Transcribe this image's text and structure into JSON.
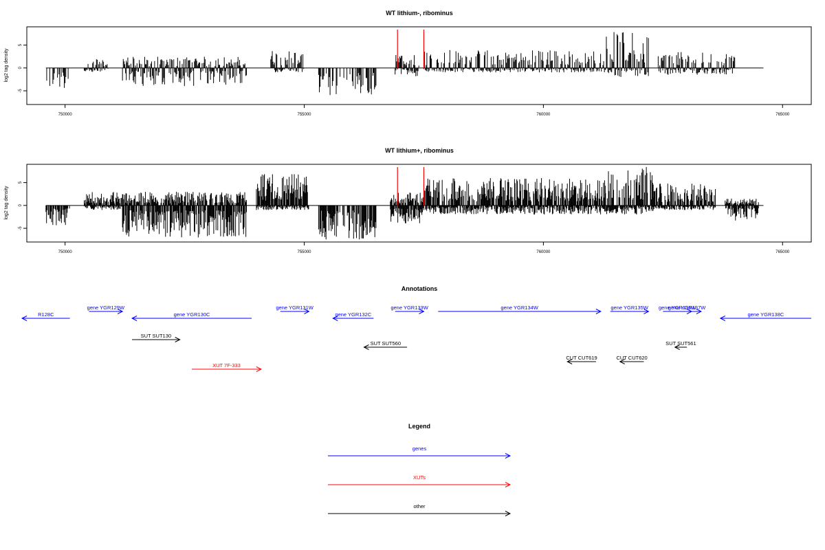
{
  "colors": {
    "gene": "#0000ff",
    "xut": "#ff0000",
    "other": "#000000",
    "bars": "#000000",
    "marker": "#ff0000"
  },
  "chart_data": [
    {
      "type": "bar",
      "title": "WT lithium-, ribominus",
      "ylabel": "log2 tag density",
      "xlim": [
        749200,
        765600
      ],
      "ylim": [
        -8,
        9
      ],
      "x_ticks": [
        750000,
        755000,
        760000,
        765000
      ],
      "y_ticks": [
        5,
        0,
        -5
      ],
      "markers_x": [
        756950,
        757500
      ],
      "segments": [
        {
          "from": 749600,
          "to": 750100,
          "min": -4.5,
          "max": 0
        },
        {
          "from": 750400,
          "to": 750900,
          "min": -1,
          "max": 2
        },
        {
          "from": 751200,
          "to": 753800,
          "min": -4,
          "max": 2.5
        },
        {
          "from": 754300,
          "to": 755000,
          "min": -1,
          "max": 4
        },
        {
          "from": 755300,
          "to": 756500,
          "min": -6,
          "max": 0
        },
        {
          "from": 756900,
          "to": 757400,
          "min": -2,
          "max": 3
        },
        {
          "from": 757500,
          "to": 761300,
          "min": -1,
          "max": 4
        },
        {
          "from": 761300,
          "to": 762200,
          "min": -2,
          "max": 8
        },
        {
          "from": 762400,
          "to": 764000,
          "min": -1.5,
          "max": 3.5
        }
      ]
    },
    {
      "type": "bar",
      "title": "WT lithium+, ribominus",
      "ylabel": "log2 tag density",
      "xlim": [
        749200,
        765600
      ],
      "ylim": [
        -8,
        9
      ],
      "x_ticks": [
        750000,
        755000,
        760000,
        765000
      ],
      "y_ticks": [
        5,
        0,
        -5
      ],
      "markers_x": [
        756950,
        757500
      ],
      "segments": [
        {
          "from": 749600,
          "to": 750100,
          "min": -4.5,
          "max": 0
        },
        {
          "from": 750400,
          "to": 751200,
          "min": -1,
          "max": 3
        },
        {
          "from": 751200,
          "to": 753800,
          "min": -7,
          "max": 3
        },
        {
          "from": 754000,
          "to": 755100,
          "min": -1,
          "max": 7
        },
        {
          "from": 755300,
          "to": 756500,
          "min": -7.5,
          "max": 0
        },
        {
          "from": 756800,
          "to": 757500,
          "min": -4,
          "max": 3
        },
        {
          "from": 757500,
          "to": 761300,
          "min": -2,
          "max": 6
        },
        {
          "from": 761300,
          "to": 762300,
          "min": -2,
          "max": 8.5
        },
        {
          "from": 762300,
          "to": 763600,
          "min": -1,
          "max": 5
        },
        {
          "from": 763800,
          "to": 764500,
          "min": -3.5,
          "max": 1.5
        }
      ]
    }
  ],
  "annotations": {
    "title": "Annotations",
    "features": [
      {
        "label": "R128C",
        "type": "gene",
        "from": 749100,
        "to": 750100,
        "dir": "left",
        "row": 2
      },
      {
        "label": "gene YGR129W",
        "type": "gene",
        "from": 750500,
        "to": 751200,
        "dir": "right",
        "row": 1
      },
      {
        "label": "gene YGR130C",
        "type": "gene",
        "from": 751400,
        "to": 753900,
        "dir": "left",
        "row": 2
      },
      {
        "label": "gene YGR131W",
        "type": "gene",
        "from": 754500,
        "to": 755100,
        "dir": "right",
        "row": 1
      },
      {
        "label": "gene YGR132C",
        "type": "gene",
        "from": 755600,
        "to": 756450,
        "dir": "left",
        "row": 2
      },
      {
        "label": "gene YGR133W",
        "type": "gene",
        "from": 756900,
        "to": 757500,
        "dir": "right",
        "row": 1
      },
      {
        "label": "gene YGR134W",
        "type": "gene",
        "from": 757800,
        "to": 761200,
        "dir": "right",
        "row": 1
      },
      {
        "label": "gene YGR135W",
        "type": "gene",
        "from": 761400,
        "to": 762200,
        "dir": "right",
        "row": 1
      },
      {
        "label": "gene YGR136W",
        "type": "gene",
        "from": 762500,
        "to": 763100,
        "dir": "right",
        "row": 1
      },
      {
        "label": "gene YGR137W",
        "type": "gene",
        "from": 762700,
        "to": 763300,
        "dir": "right",
        "row": 1
      },
      {
        "label": "gene YGR138C",
        "type": "gene",
        "from": 763700,
        "to": 765600,
        "dir": "left",
        "row": 2
      },
      {
        "label": "SUT SUT130",
        "type": "other",
        "from": 751400,
        "to": 752400,
        "dir": "right",
        "row": 3
      },
      {
        "label": "SUT SUT560",
        "type": "other",
        "from": 756250,
        "to": 757150,
        "dir": "left",
        "row": 4
      },
      {
        "label": "SUT SUT561",
        "type": "other",
        "from": 762750,
        "to": 763000,
        "dir": "left",
        "row": 4
      },
      {
        "label": "CUT CUT619",
        "type": "other",
        "from": 760500,
        "to": 761100,
        "dir": "left",
        "row": 5
      },
      {
        "label": "CUT CUT620",
        "type": "other",
        "from": 761600,
        "to": 762100,
        "dir": "left",
        "row": 5
      },
      {
        "label": "XUT 7F-333",
        "type": "xut",
        "from": 752650,
        "to": 754100,
        "dir": "right",
        "row": 6
      }
    ]
  },
  "legend": {
    "title": "Legend",
    "items": [
      {
        "label": "genes",
        "type": "gene"
      },
      {
        "label": "XUTs",
        "type": "xut"
      },
      {
        "label": "other",
        "type": "other"
      }
    ]
  }
}
